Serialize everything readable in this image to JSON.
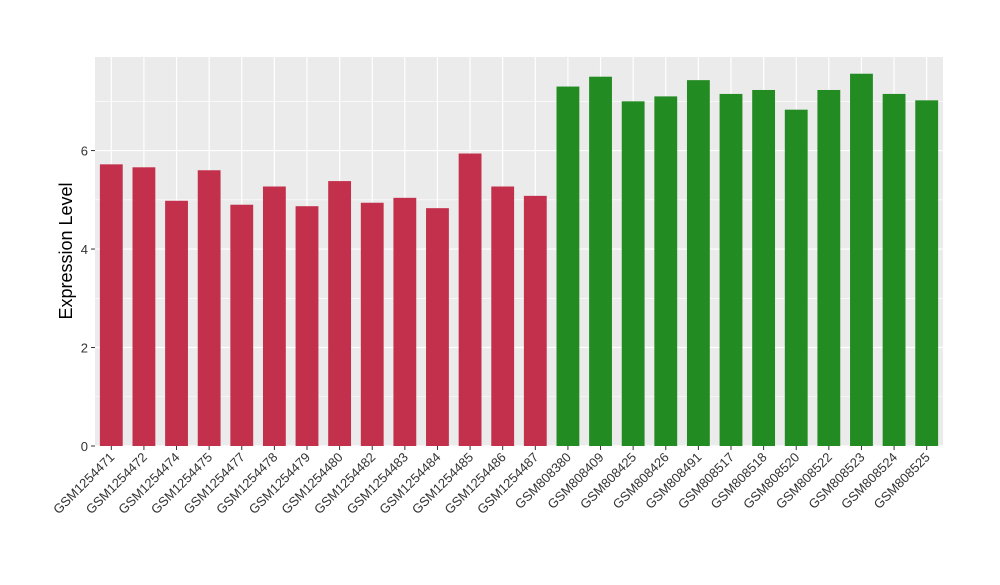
{
  "chart_data": {
    "type": "bar",
    "xlabel": "",
    "ylabel": "Expression Level",
    "ylim": [
      0,
      7.9
    ],
    "yticks": [
      0,
      2,
      4,
      6
    ],
    "grid": true,
    "colors": {
      "group1": "#c3304b",
      "group2": "#228b22",
      "panel": "#ebebeb",
      "gridline": "#ffffff"
    },
    "categories": [
      "GSM1254471",
      "GSM1254472",
      "GSM1254474",
      "GSM1254475",
      "GSM1254477",
      "GSM1254478",
      "GSM1254479",
      "GSM1254480",
      "GSM1254482",
      "GSM1254483",
      "GSM1254484",
      "GSM1254485",
      "GSM1254486",
      "GSM1254487",
      "GSM808380",
      "GSM808409",
      "GSM808425",
      "GSM808426",
      "GSM808491",
      "GSM808517",
      "GSM808518",
      "GSM808520",
      "GSM808522",
      "GSM808523",
      "GSM808524",
      "GSM808525"
    ],
    "values": [
      5.72,
      5.66,
      4.98,
      5.6,
      4.9,
      5.27,
      4.87,
      5.38,
      4.94,
      5.04,
      4.83,
      5.94,
      5.27,
      5.08,
      7.3,
      7.5,
      7.0,
      7.1,
      7.43,
      7.15,
      7.23,
      6.83,
      7.23,
      7.56,
      7.15,
      7.02
    ],
    "groups": [
      "group1",
      "group1",
      "group1",
      "group1",
      "group1",
      "group1",
      "group1",
      "group1",
      "group1",
      "group1",
      "group1",
      "group1",
      "group1",
      "group1",
      "group2",
      "group2",
      "group2",
      "group2",
      "group2",
      "group2",
      "group2",
      "group2",
      "group2",
      "group2",
      "group2",
      "group2"
    ]
  }
}
